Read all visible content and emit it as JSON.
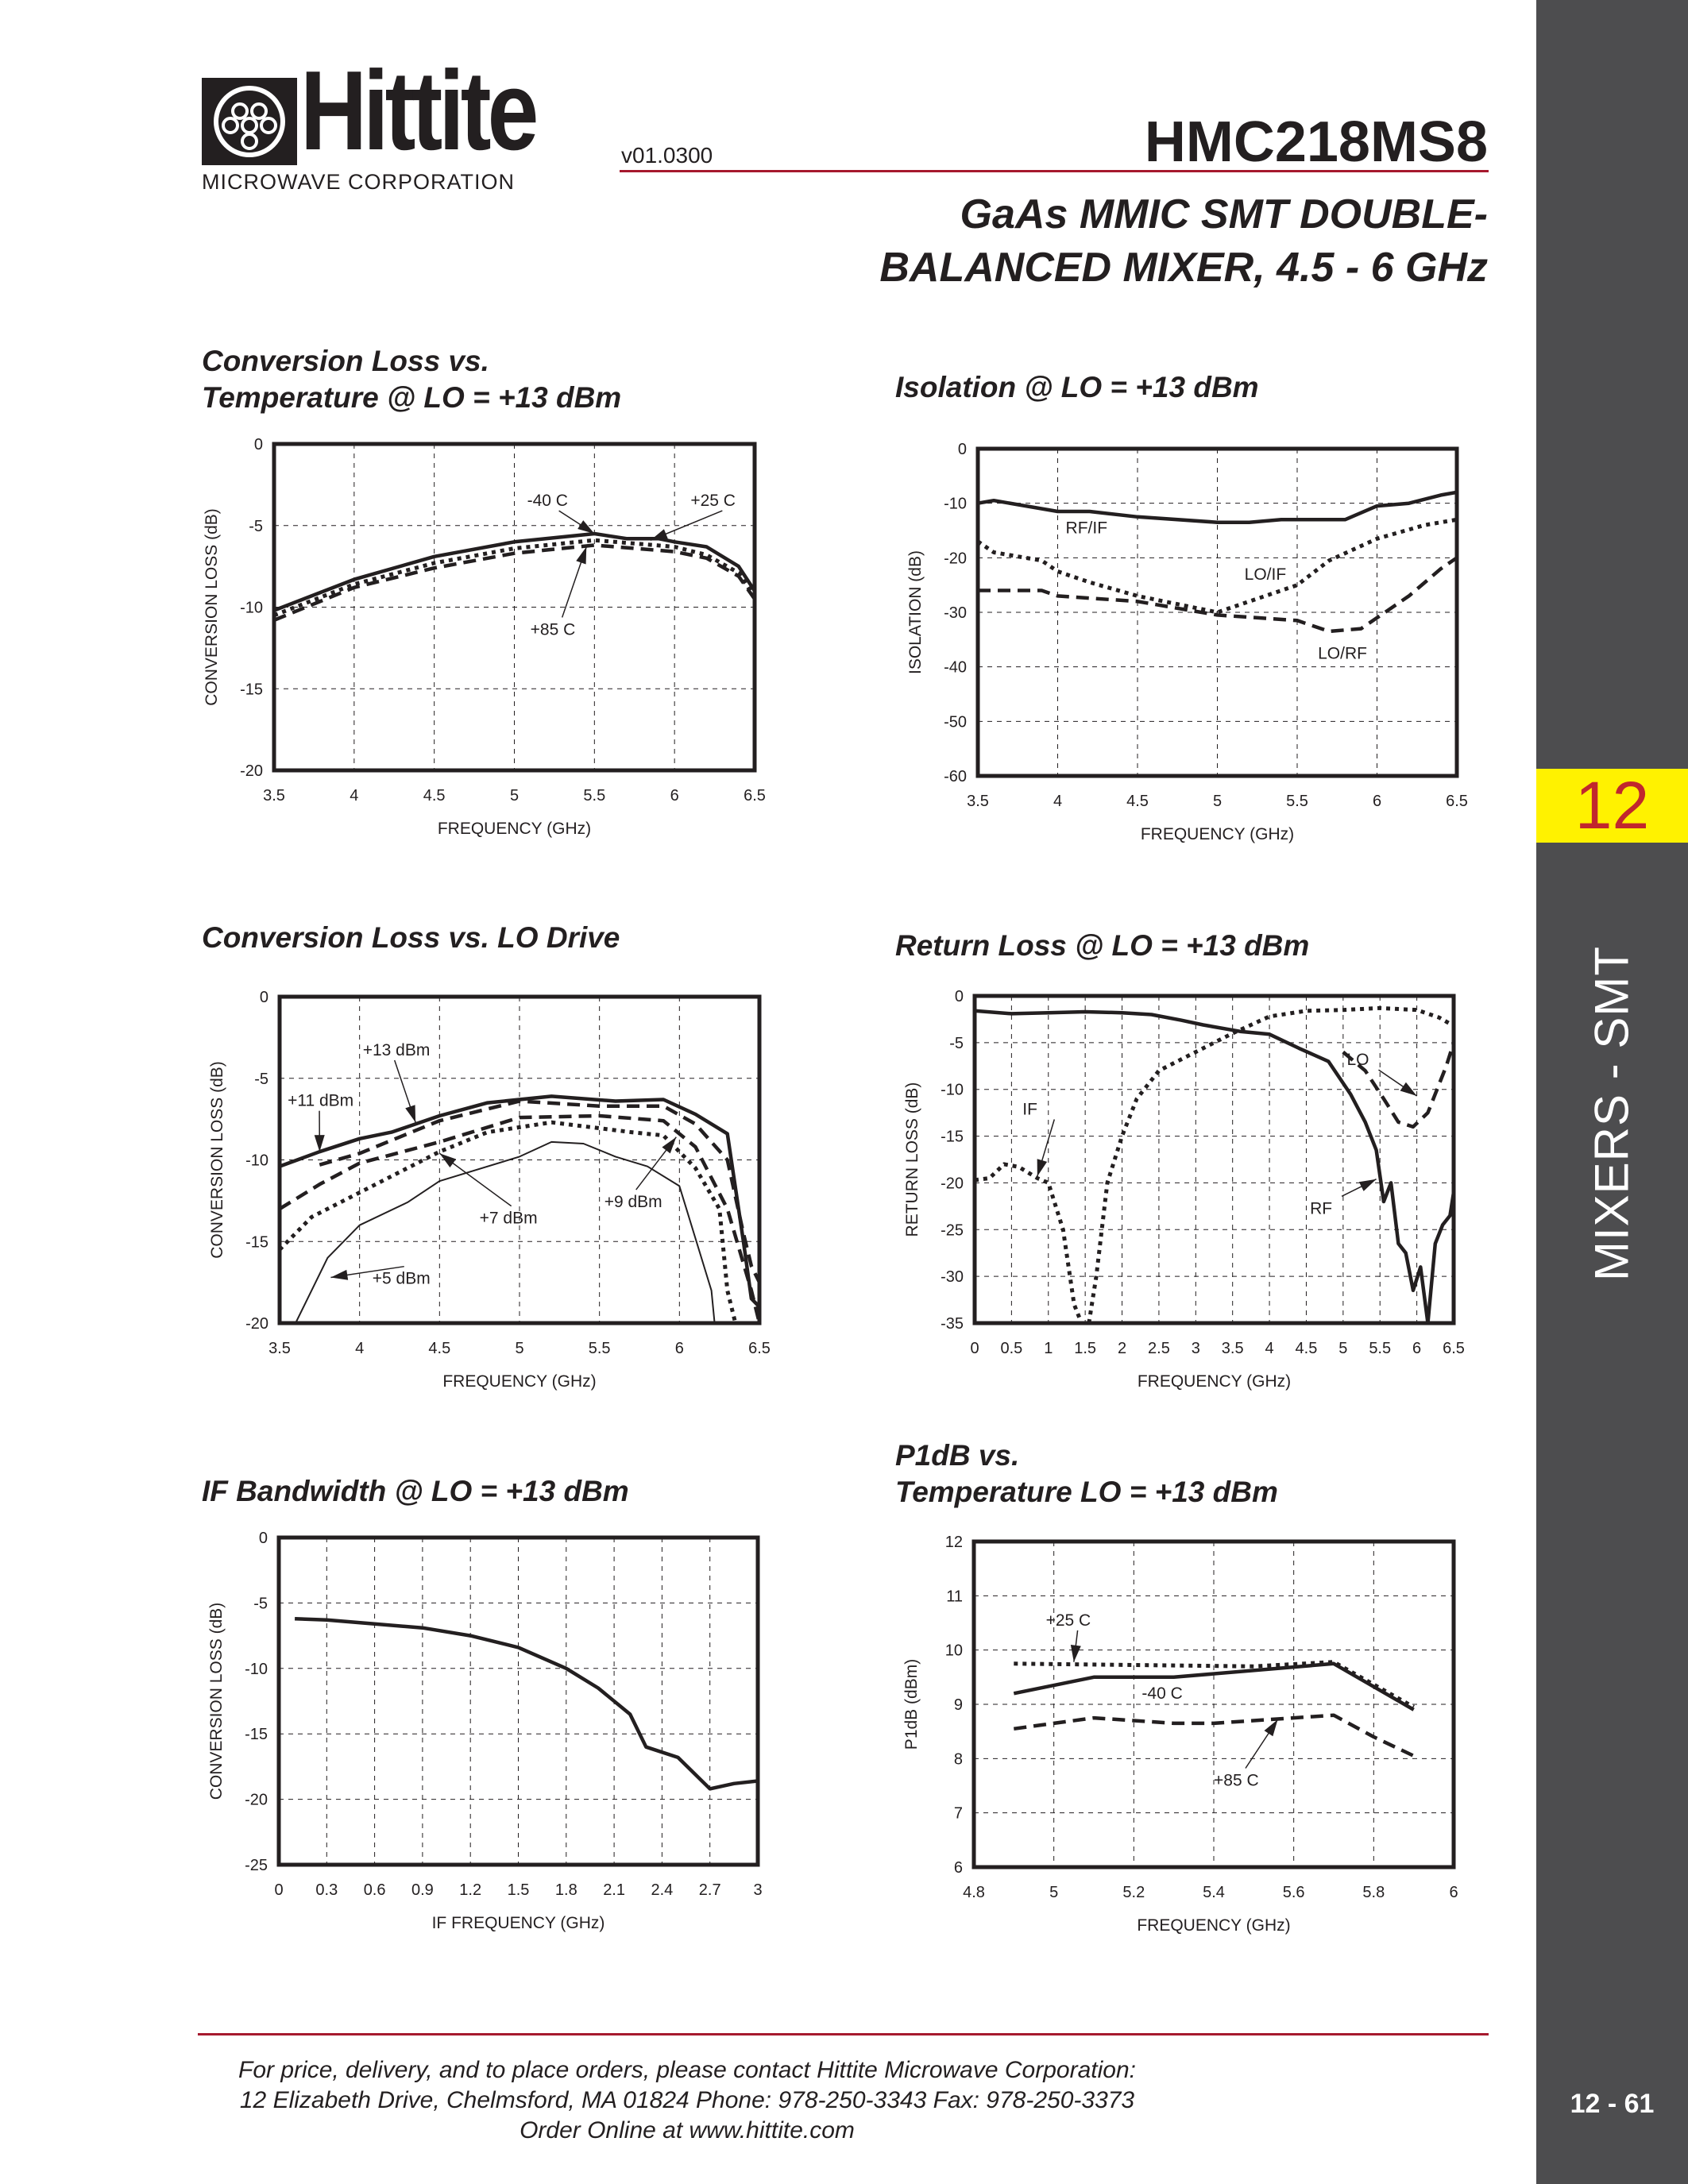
{
  "header": {
    "logo_word": "Hittite",
    "logo_sub": "MICROWAVE CORPORATION",
    "version": "v01.0300",
    "part_number": "HMC218MS8",
    "subtitle_line1": "GaAs MMIC SMT DOUBLE-",
    "subtitle_line2": "BALANCED MIXER, 4.5 - 6 GHz",
    "rule_color": "#a6192e"
  },
  "sidebar": {
    "section_number": "12",
    "section_name": "MIXERS - SMT",
    "page_number": "12 - 61",
    "background": "#4d4d4f",
    "tab_color": "#fff200",
    "tab_text_color": "#c1272d"
  },
  "chart_titles": [
    [
      "Conversion Loss vs.",
      "Temperature @ LO = +13 dBm"
    ],
    [
      "Isolation @ LO = +13 dBm"
    ],
    [
      "Conversion Loss vs. LO Drive"
    ],
    [
      "Return Loss @ LO = +13 dBm"
    ],
    [
      "IF Bandwidth @ LO = +13 dBm"
    ],
    [
      "P1dB vs.",
      "Temperature LO = +13 dBm"
    ]
  ],
  "chart_data": [
    {
      "type": "line",
      "title": "Conversion Loss vs. Temperature @ LO = +13 dBm",
      "xlabel": "FREQUENCY (GHz)",
      "ylabel": "CONVERSION LOSS (dB)",
      "xlim": [
        3.5,
        6.5
      ],
      "ylim": [
        -20,
        0
      ],
      "grid": true,
      "xticks": [
        "3.5",
        "4",
        "4.5",
        "5",
        "5.5",
        "6",
        "6.5"
      ],
      "yticks": [
        "0",
        "-5",
        "-10",
        "-15",
        "-20"
      ],
      "series": [
        {
          "name": "-40 C",
          "style": "solid",
          "x": [
            3.5,
            4,
            4.5,
            5,
            5.5,
            5.7,
            5.9,
            6,
            6.2,
            6.4,
            6.5
          ],
          "y": [
            -10.2,
            -8.3,
            -6.9,
            -6.0,
            -5.5,
            -5.8,
            -5.8,
            -6.0,
            -6.3,
            -7.5,
            -9.0
          ]
        },
        {
          "name": "+25 C",
          "style": "dotted",
          "x": [
            3.5,
            4,
            4.5,
            5,
            5.5,
            6,
            6.2,
            6.4,
            6.5
          ],
          "y": [
            -10.5,
            -8.6,
            -7.3,
            -6.4,
            -5.9,
            -6.3,
            -6.8,
            -7.9,
            -9.4
          ]
        },
        {
          "name": "+85 C",
          "style": "dashed",
          "x": [
            3.5,
            4,
            4.5,
            5,
            5.5,
            6,
            6.2,
            6.4,
            6.5
          ],
          "y": [
            -10.8,
            -8.8,
            -7.6,
            -6.7,
            -6.2,
            -6.6,
            -7.0,
            -8.1,
            -9.5
          ]
        }
      ],
      "annotations": [
        "-40 C",
        "+25 C",
        "+85 C"
      ]
    },
    {
      "type": "line",
      "title": "Isolation @ LO = +13 dBm",
      "xlabel": "FREQUENCY (GHz)",
      "ylabel": "ISOLATION (dB)",
      "xlim": [
        3.5,
        6.5
      ],
      "ylim": [
        -60,
        0
      ],
      "grid": true,
      "xticks": [
        "3.5",
        "4",
        "4.5",
        "5",
        "5.5",
        "6",
        "6.5"
      ],
      "yticks": [
        "0",
        "-10",
        "-20",
        "-30",
        "-40",
        "-50",
        "-60"
      ],
      "series": [
        {
          "name": "RF/IF",
          "style": "solid",
          "x": [
            3.5,
            3.6,
            4,
            4.2,
            4.5,
            5,
            5.2,
            5.4,
            5.8,
            6,
            6.2,
            6.4,
            6.5
          ],
          "y": [
            -10,
            -9.5,
            -11.5,
            -11.5,
            -12.5,
            -13.5,
            -13.5,
            -13,
            -13,
            -10.5,
            -10,
            -8.5,
            -8
          ]
        },
        {
          "name": "LO/IF",
          "style": "dotted",
          "x": [
            3.5,
            3.6,
            3.9,
            4,
            4.2,
            4.5,
            5,
            5.2,
            5.5,
            5.7,
            6,
            6.3,
            6.5
          ],
          "y": [
            -17,
            -19,
            -20.5,
            -22.5,
            -24.5,
            -27,
            -30,
            -28,
            -25,
            -20.5,
            -16.5,
            -14,
            -13
          ]
        },
        {
          "name": "LO/RF",
          "style": "dashed",
          "x": [
            3.5,
            3.9,
            4,
            4.5,
            5,
            5.5,
            5.7,
            5.9,
            6,
            6.2,
            6.4,
            6.5
          ],
          "y": [
            -26,
            -26,
            -27,
            -28,
            -30.5,
            -31.5,
            -33.5,
            -33,
            -31,
            -27,
            -22,
            -20
          ]
        }
      ],
      "annotations": [
        "RF/IF",
        "LO/IF",
        "LO/RF"
      ]
    },
    {
      "type": "line",
      "title": "Conversion Loss vs. LO Drive",
      "xlabel": "FREQUENCY (GHz)",
      "ylabel": "CONVERSION LOSS (dB)",
      "xlim": [
        3.5,
        6.5
      ],
      "ylim": [
        -20,
        0
      ],
      "grid": true,
      "xticks": [
        "3.5",
        "4",
        "4.5",
        "5",
        "5.5",
        "6",
        "6.5"
      ],
      "yticks": [
        "0",
        "-5",
        "-10",
        "-15",
        "-20"
      ],
      "series": [
        {
          "name": "+13 dBm",
          "style": "solid",
          "x": [
            3.5,
            3.75,
            4,
            4.2,
            4.5,
            4.8,
            5.2,
            5.6,
            5.9,
            6.1,
            6.3,
            6.4,
            6.45,
            6.5
          ],
          "y": [
            -10.4,
            -9.5,
            -8.7,
            -8.3,
            -7.3,
            -6.5,
            -6.1,
            -6.4,
            -6.3,
            -7.2,
            -8.4,
            -15,
            -18.5,
            -19
          ]
        },
        {
          "name": "+11 dBm",
          "style": "dashed",
          "x": [
            3.75,
            4,
            4.5,
            5,
            5.5,
            5.9,
            6.1,
            6.3,
            6.4,
            6.45,
            6.5
          ],
          "y": [
            -10.3,
            -9.6,
            -7.6,
            -6.4,
            -6.7,
            -6.7,
            -7.8,
            -10,
            -14.5,
            -16.5,
            -17.5
          ]
        },
        {
          "name": "+9 dBm",
          "style": "dashed",
          "x": [
            3.5,
            3.75,
            4,
            4.5,
            5,
            5.5,
            5.9,
            6.1,
            6.3,
            6.45,
            6.5
          ],
          "y": [
            -13,
            -11.5,
            -10.2,
            -8.9,
            -7.4,
            -7.3,
            -7.6,
            -9.2,
            -13,
            -18,
            -20
          ]
        },
        {
          "name": "+7 dBm",
          "style": "dotted",
          "x": [
            3.5,
            3.7,
            4,
            4.5,
            4.8,
            5.2,
            5.7,
            5.9,
            6.1,
            6.25,
            6.3,
            6.35
          ],
          "y": [
            -15.5,
            -13.5,
            -12,
            -9.5,
            -8.3,
            -7.7,
            -8.3,
            -8.5,
            -10.5,
            -13,
            -18,
            -20
          ]
        },
        {
          "name": "+5 dBm",
          "style": "thin",
          "x": [
            3.6,
            3.8,
            4,
            4.3,
            4.5,
            5,
            5.2,
            5.4,
            5.6,
            5.8,
            6,
            6.2,
            6.22
          ],
          "y": [
            -20,
            -16,
            -14,
            -12.6,
            -11.3,
            -9.8,
            -8.9,
            -9,
            -9.8,
            -10.4,
            -11.6,
            -18,
            -20
          ]
        }
      ],
      "annotations": [
        "+13 dBm",
        "+11 dBm",
        "+7 dBm",
        "+9 dBm",
        "+5 dBm"
      ]
    },
    {
      "type": "line",
      "title": "Return Loss @ LO = +13 dBm",
      "xlabel": "FREQUENCY (GHz)",
      "ylabel": "RETURN LOSS (dB)",
      "xlim": [
        0,
        6.5
      ],
      "ylim": [
        -35,
        0
      ],
      "grid": true,
      "xticks": [
        "0",
        "0.5",
        "1",
        "1.5",
        "2",
        "2.5",
        "3",
        "3.5",
        "4",
        "4.5",
        "5",
        "5.5",
        "6",
        "6.5"
      ],
      "yticks": [
        "0",
        "-5",
        "-10",
        "-15",
        "-20",
        "-25",
        "-30",
        "-35"
      ],
      "series": [
        {
          "name": "IF",
          "style": "dotted",
          "x": [
            0,
            0.2,
            0.4,
            0.6,
            0.85,
            1.0,
            1.2,
            1.35,
            1.45,
            1.55,
            1.65,
            1.8,
            2.0,
            2.2,
            2.5,
            3.0,
            3.5,
            4.0,
            4.5,
            5,
            5.5,
            6,
            6.3,
            6.5
          ],
          "y": [
            -19.7,
            -19.5,
            -18,
            -18.3,
            -19.5,
            -20,
            -25,
            -33,
            -35,
            -35,
            -30,
            -20,
            -15,
            -11,
            -8,
            -6,
            -4,
            -2.2,
            -1.6,
            -1.5,
            -1.3,
            -1.5,
            -2.3,
            -3.2
          ]
        },
        {
          "name": "RF",
          "style": "solid",
          "x": [
            0,
            0.5,
            1,
            1.5,
            2,
            2.4,
            2.8,
            3.1,
            3.6,
            4,
            4.4,
            4.8,
            5.1,
            5.3,
            5.45,
            5.55,
            5.65,
            5.75,
            5.85,
            5.95,
            6.05,
            6.15,
            6.25,
            6.35,
            6.45,
            6.5
          ],
          "y": [
            -1.6,
            -1.9,
            -1.8,
            -1.7,
            -1.8,
            -2,
            -2.6,
            -3.1,
            -3.8,
            -4.1,
            -5.6,
            -7,
            -10.5,
            -13.5,
            -16.5,
            -22,
            -20,
            -26.5,
            -27.5,
            -31.5,
            -29,
            -35,
            -26.5,
            -24.5,
            -23.5,
            -21
          ]
        },
        {
          "name": "LO",
          "style": "dashed",
          "x": [
            5.0,
            5.3,
            5.55,
            5.75,
            5.95,
            6.15,
            6.25,
            6.4,
            6.5
          ],
          "y": [
            -6,
            -8,
            -11,
            -13.5,
            -14,
            -12.5,
            -10.5,
            -7.5,
            -5
          ]
        }
      ],
      "annotations": [
        "IF",
        "LO",
        "RF"
      ]
    },
    {
      "type": "line",
      "title": "IF Bandwidth @ LO = +13 dBm",
      "xlabel": "IF FREQUENCY (GHz)",
      "ylabel": "CONVERSION LOSS (dB)",
      "xlim": [
        0,
        3
      ],
      "ylim": [
        -25,
        0
      ],
      "grid": true,
      "xticks": [
        "0",
        "0.3",
        "0.6",
        "0.9",
        "1.2",
        "1.5",
        "1.8",
        "2.1",
        "2.4",
        "2.7",
        "3"
      ],
      "yticks": [
        "0",
        "-5",
        "-10",
        "-15",
        "-20",
        "-25"
      ],
      "series": [
        {
          "style": "solid",
          "x": [
            0.1,
            0.3,
            0.6,
            0.9,
            1.2,
            1.5,
            1.8,
            2.0,
            2.2,
            2.3,
            2.5,
            2.7,
            2.85,
            3.0
          ],
          "y": [
            -6.2,
            -6.3,
            -6.6,
            -6.9,
            -7.5,
            -8.4,
            -10,
            -11.5,
            -13.5,
            -16,
            -16.8,
            -19.2,
            -18.8,
            -18.6
          ]
        }
      ],
      "annotations": []
    },
    {
      "type": "line",
      "title": "P1dB vs. Temperature LO = +13 dBm",
      "xlabel": "FREQUENCY (GHz)",
      "ylabel": "P1dB (dBm)",
      "xlim": [
        4.8,
        6.0
      ],
      "ylim": [
        6,
        12
      ],
      "grid": true,
      "xticks": [
        "4.8",
        "5",
        "5.2",
        "5.4",
        "5.6",
        "5.8",
        "6"
      ],
      "yticks": [
        "12",
        "11",
        "10",
        "9",
        "8",
        "7",
        "6"
      ],
      "series": [
        {
          "name": "+25 C",
          "style": "dotted",
          "x": [
            4.9,
            5.5,
            5.7,
            5.9
          ],
          "y": [
            9.75,
            9.7,
            9.78,
            8.95
          ]
        },
        {
          "name": "-40 C",
          "style": "solid",
          "x": [
            4.9,
            5.1,
            5.3,
            5.7,
            5.9
          ],
          "y": [
            9.2,
            9.5,
            9.5,
            9.75,
            8.9
          ]
        },
        {
          "name": "+85 C",
          "style": "dashed",
          "x": [
            4.9,
            5.0,
            5.1,
            5.2,
            5.3,
            5.4,
            5.5,
            5.6,
            5.7,
            5.8,
            5.9
          ],
          "y": [
            8.55,
            8.65,
            8.75,
            8.7,
            8.65,
            8.65,
            8.7,
            8.75,
            8.8,
            8.4,
            8.05
          ]
        }
      ],
      "annotations": [
        "+25 C",
        "-40 C",
        "+85 C"
      ]
    }
  ],
  "footer": {
    "line1": "For price, delivery, and to place orders, please contact Hittite Microwave Corporation:",
    "line2": "12 Elizabeth Drive, Chelmsford, MA 01824 Phone: 978-250-3343  Fax: 978-250-3373",
    "line3": "Order Online at www.hittite.com"
  }
}
